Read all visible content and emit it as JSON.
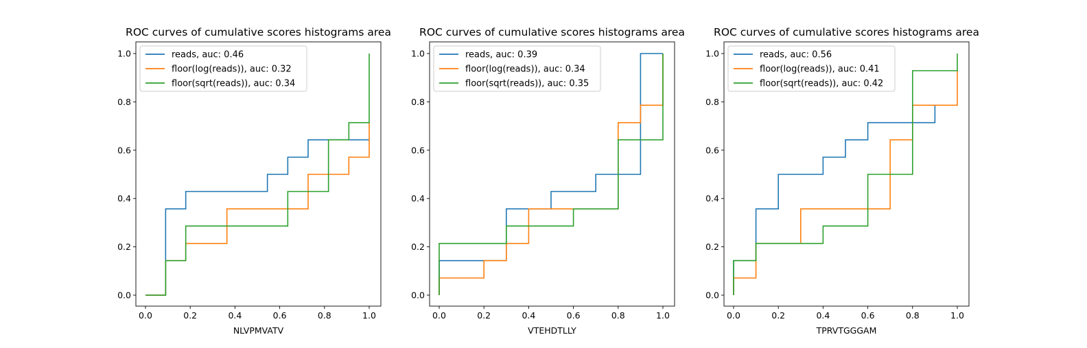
{
  "colors": {
    "blue": "#1f77b4",
    "orange": "#ff7f0e",
    "green": "#2ca02c"
  },
  "chart_data": [
    {
      "type": "line",
      "title": "ROC curves of cumulative scores histograms area",
      "xlabel": "NLVPMVATV",
      "ylabel": "",
      "xlim": [
        0,
        1
      ],
      "ylim": [
        0,
        1
      ],
      "xticks": [
        "0.0",
        "0.2",
        "0.4",
        "0.6",
        "0.8",
        "1.0"
      ],
      "yticks": [
        "0.0",
        "0.2",
        "0.4",
        "0.6",
        "0.8",
        "1.0"
      ],
      "legend_position": "top-left",
      "series": [
        {
          "name": "reads, auc: 0.46",
          "color": "#1f77b4",
          "x": [
            0,
            0.09,
            0.09,
            0.18,
            0.18,
            0.545,
            0.545,
            0.636,
            0.636,
            0.727,
            0.727,
            1.0,
            1.0
          ],
          "y": [
            0,
            0,
            0.357,
            0.357,
            0.429,
            0.429,
            0.5,
            0.5,
            0.571,
            0.571,
            0.643,
            0.643,
            0.643
          ]
        },
        {
          "name": "floor(log(reads)), auc: 0.32",
          "color": "#ff7f0e",
          "x": [
            0,
            0.09,
            0.09,
            0.18,
            0.18,
            0.364,
            0.364,
            0.727,
            0.727,
            0.909,
            0.909,
            1.0,
            1.0
          ],
          "y": [
            0,
            0,
            0.143,
            0.143,
            0.214,
            0.214,
            0.357,
            0.357,
            0.5,
            0.5,
            0.571,
            0.571,
            0.714
          ]
        },
        {
          "name": "floor(sqrt(reads)), auc: 0.34",
          "color": "#2ca02c",
          "x": [
            0,
            0.09,
            0.09,
            0.18,
            0.18,
            0.636,
            0.636,
            0.818,
            0.818,
            0.909,
            0.909,
            1.0,
            1.0
          ],
          "y": [
            0,
            0,
            0.143,
            0.143,
            0.286,
            0.286,
            0.429,
            0.429,
            0.643,
            0.643,
            0.714,
            0.714,
            1.0
          ]
        }
      ]
    },
    {
      "type": "line",
      "title": "ROC curves of cumulative scores histograms area",
      "xlabel": "VTEHDTLLY",
      "ylabel": "",
      "xlim": [
        0,
        1
      ],
      "ylim": [
        0,
        1
      ],
      "xticks": [
        "0.0",
        "0.2",
        "0.4",
        "0.6",
        "0.8",
        "1.0"
      ],
      "yticks": [
        "0.0",
        "0.2",
        "0.4",
        "0.6",
        "0.8",
        "1.0"
      ],
      "legend_position": "top-left",
      "series": [
        {
          "name": "reads, auc: 0.39",
          "color": "#1f77b4",
          "x": [
            0,
            0,
            0.3,
            0.3,
            0.5,
            0.5,
            0.7,
            0.7,
            0.9,
            0.9,
            1.0,
            1.0
          ],
          "y": [
            0,
            0.143,
            0.143,
            0.357,
            0.357,
            0.429,
            0.429,
            0.5,
            0.5,
            1.0,
            1.0,
            1.0
          ]
        },
        {
          "name": "floor(log(reads)), auc: 0.34",
          "color": "#ff7f0e",
          "x": [
            0,
            0,
            0.2,
            0.2,
            0.3,
            0.3,
            0.4,
            0.4,
            0.8,
            0.8,
            0.9,
            0.9,
            1.0,
            1.0
          ],
          "y": [
            0,
            0.071,
            0.071,
            0.143,
            0.143,
            0.214,
            0.214,
            0.357,
            0.357,
            0.714,
            0.714,
            0.786,
            0.786,
            1.0
          ]
        },
        {
          "name": "floor(sqrt(reads)), auc: 0.35",
          "color": "#2ca02c",
          "x": [
            0,
            0,
            0.3,
            0.3,
            0.6,
            0.6,
            0.8,
            0.8,
            1.0,
            1.0
          ],
          "y": [
            0,
            0.214,
            0.214,
            0.286,
            0.286,
            0.357,
            0.357,
            0.643,
            0.643,
            1.0
          ]
        }
      ]
    },
    {
      "type": "line",
      "title": "ROC curves of cumulative scores histograms area",
      "xlabel": "TPRVTGGGAM",
      "ylabel": "",
      "xlim": [
        0,
        1
      ],
      "ylim": [
        0,
        1
      ],
      "xticks": [
        "0.0",
        "0.2",
        "0.4",
        "0.6",
        "0.8",
        "1.0"
      ],
      "yticks": [
        "0.0",
        "0.2",
        "0.4",
        "0.6",
        "0.8",
        "1.0"
      ],
      "legend_position": "top-left",
      "series": [
        {
          "name": "reads, auc: 0.56",
          "color": "#1f77b4",
          "x": [
            0,
            0,
            0.1,
            0.1,
            0.2,
            0.2,
            0.4,
            0.4,
            0.5,
            0.5,
            0.6,
            0.6,
            0.9,
            0.9
          ],
          "y": [
            0,
            0.143,
            0.143,
            0.357,
            0.357,
            0.5,
            0.5,
            0.571,
            0.571,
            0.643,
            0.643,
            0.714,
            0.714,
            0.786
          ]
        },
        {
          "name": "floor(log(reads)), auc: 0.41",
          "color": "#ff7f0e",
          "x": [
            0,
            0,
            0.1,
            0.1,
            0.3,
            0.3,
            0.7,
            0.7,
            0.8,
            0.8,
            1.0,
            1.0
          ],
          "y": [
            0,
            0.071,
            0.071,
            0.214,
            0.214,
            0.357,
            0.357,
            0.643,
            0.643,
            0.786,
            0.786,
            0.929
          ]
        },
        {
          "name": "floor(sqrt(reads)), auc: 0.42",
          "color": "#2ca02c",
          "x": [
            0,
            0,
            0.1,
            0.1,
            0.4,
            0.4,
            0.6,
            0.6,
            0.8,
            0.8,
            1.0,
            1.0
          ],
          "y": [
            0,
            0.143,
            0.143,
            0.214,
            0.214,
            0.286,
            0.286,
            0.5,
            0.5,
            0.929,
            0.929,
            1.0
          ]
        }
      ]
    }
  ]
}
